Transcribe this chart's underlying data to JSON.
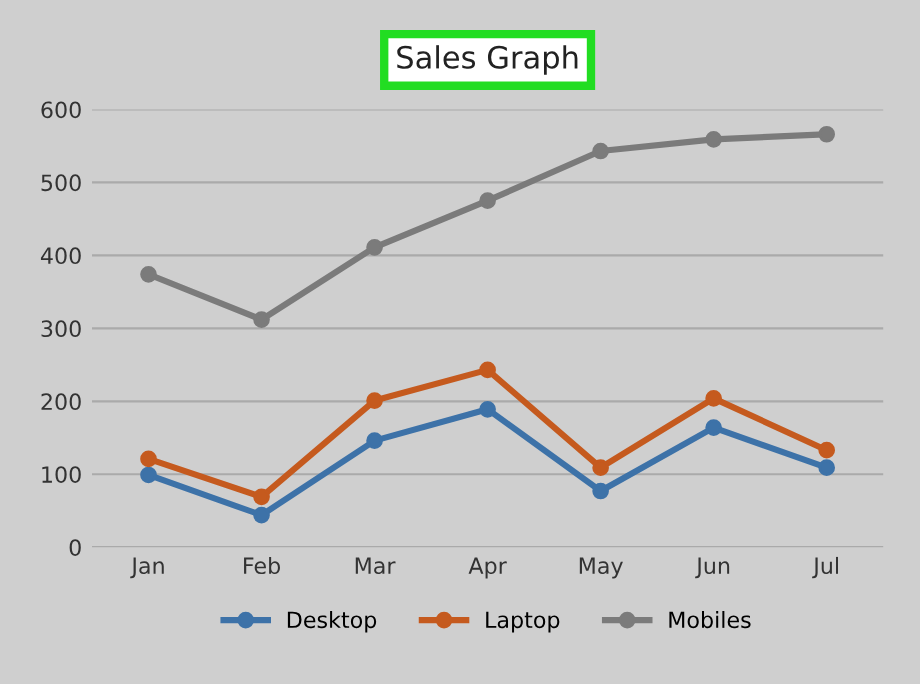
{
  "chart_data": {
    "type": "line",
    "title": "Sales Graph",
    "categories": [
      "Jan",
      "Feb",
      "Mar",
      "Apr",
      "May",
      "Jun",
      "Jul"
    ],
    "series": [
      {
        "name": "Desktop",
        "color": "#3d72a8",
        "values": [
          99,
          44,
          146,
          189,
          77,
          164,
          109
        ]
      },
      {
        "name": "Laptop",
        "color": "#c55a1e",
        "values": [
          121,
          69,
          201,
          243,
          109,
          204,
          133
        ]
      },
      {
        "name": "Mobiles",
        "color": "#7b7b7b",
        "values": [
          374,
          312,
          411,
          475,
          543,
          559,
          566
        ]
      }
    ],
    "ylim": [
      0,
      600
    ],
    "yticks": [
      0,
      100,
      200,
      300,
      400,
      500,
      600
    ],
    "grid": "y",
    "legend": "bottom",
    "marker": "circle",
    "line_style": "solid"
  }
}
